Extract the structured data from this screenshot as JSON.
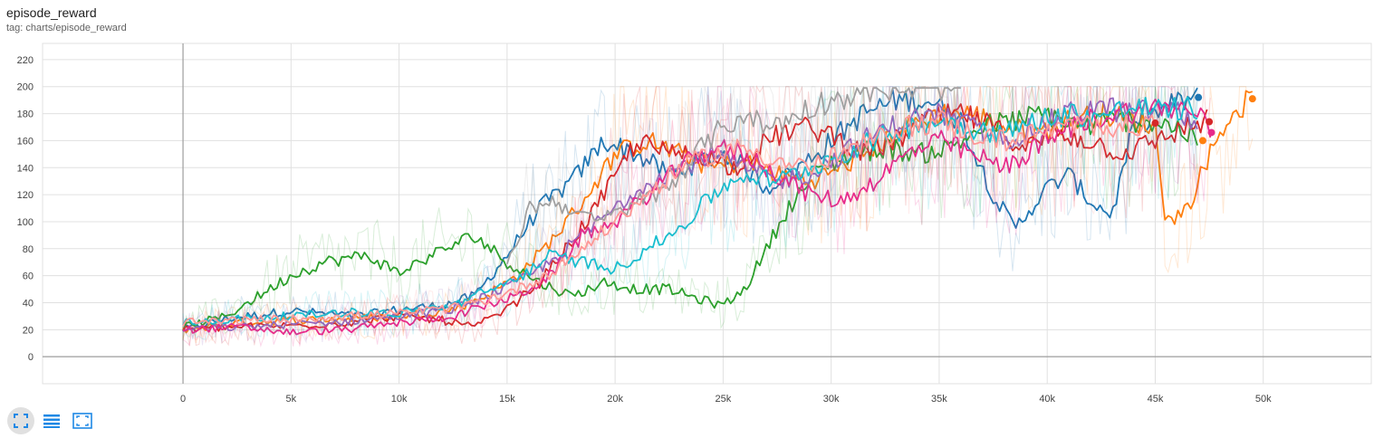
{
  "header": {
    "title": "episode_reward",
    "subtitle": "tag: charts/episode_reward"
  },
  "toolbar": {
    "buttons": [
      {
        "name": "fullscreen-toggle-button",
        "icon": "expand-corners-icon",
        "active": true
      },
      {
        "name": "toggle-y-log-button",
        "icon": "list-lines-icon",
        "active": false
      },
      {
        "name": "fit-domain-button",
        "icon": "fit-to-data-icon",
        "active": false
      }
    ],
    "icon_color": "#1e88e5"
  },
  "chart_data": {
    "type": "line",
    "xlim": [
      -6500,
      55000
    ],
    "ylim": [
      -20,
      232
    ],
    "x_ticks": [
      0,
      5000,
      10000,
      15000,
      20000,
      25000,
      30000,
      35000,
      40000,
      45000,
      50000
    ],
    "x_tick_labels": [
      "0",
      "5k",
      "10k",
      "15k",
      "20k",
      "25k",
      "30k",
      "35k",
      "40k",
      "45k",
      "50k"
    ],
    "y_ticks": [
      0,
      20,
      40,
      60,
      80,
      100,
      120,
      140,
      160,
      180,
      200,
      220
    ],
    "grid": true,
    "legend": "none",
    "series": [
      {
        "color": "#1f77b4",
        "x": [
          0,
          2000,
          5000,
          8000,
          10000,
          12000,
          13500,
          15000,
          16500,
          18000,
          19500,
          21000,
          22500,
          24000,
          25000,
          26000,
          27000,
          28500,
          30000,
          31500,
          33000,
          34500,
          36000,
          37500,
          38500,
          40000,
          41000,
          42000,
          43000,
          44000,
          45000,
          46000,
          47000
        ],
        "y": [
          20,
          28,
          34,
          30,
          35,
          38,
          45,
          75,
          110,
          130,
          160,
          150,
          135,
          145,
          150,
          140,
          125,
          140,
          160,
          180,
          190,
          190,
          175,
          120,
          95,
          125,
          135,
          115,
          105,
          170,
          180,
          188,
          192
        ]
      },
      {
        "color": "#ff7f0e",
        "x": [
          0,
          2500,
          5000,
          7500,
          10000,
          12500,
          14000,
          15500,
          17000,
          18500,
          20000,
          21500,
          23000,
          24500,
          26000,
          27500,
          29000,
          30500,
          32000,
          33500,
          35000,
          36500,
          38000,
          39500,
          41000,
          42500,
          44000,
          45000,
          45500,
          46500,
          47500,
          48500,
          49500
        ],
        "y": [
          20,
          25,
          27,
          28,
          30,
          35,
          45,
          60,
          85,
          115,
          150,
          160,
          150,
          140,
          145,
          135,
          130,
          140,
          155,
          170,
          180,
          180,
          170,
          165,
          175,
          180,
          175,
          170,
          100,
          110,
          150,
          180,
          191
        ]
      },
      {
        "color": "#2ca02c",
        "x": [
          0,
          2000,
          3500,
          5000,
          6500,
          8500,
          10000,
          11500,
          13500,
          15000,
          16500,
          18000,
          19500,
          21000,
          22500,
          24000,
          25000,
          26000,
          27000,
          28000,
          29500,
          31000,
          32500,
          34000,
          35500,
          37000,
          38500,
          40000,
          41500,
          43000,
          44500,
          46000,
          47000
        ],
        "y": [
          22,
          30,
          45,
          60,
          70,
          75,
          62,
          75,
          90,
          70,
          55,
          45,
          55,
          50,
          50,
          42,
          38,
          50,
          80,
          110,
          140,
          150,
          155,
          150,
          155,
          170,
          175,
          180,
          170,
          175,
          175,
          170,
          160
        ]
      },
      {
        "color": "#d62728",
        "x": [
          0,
          2500,
          5000,
          7500,
          10000,
          12000,
          13500,
          15000,
          16500,
          18000,
          19500,
          21000,
          22500,
          24000,
          25500,
          27000,
          28500,
          30000,
          31500,
          33000,
          34500,
          36000,
          37500,
          39000,
          40500,
          42000,
          43500,
          45000,
          46500,
          47500
        ],
        "y": [
          20,
          22,
          23,
          25,
          30,
          27,
          22,
          35,
          55,
          85,
          120,
          160,
          150,
          150,
          140,
          160,
          170,
          165,
          150,
          160,
          175,
          180,
          170,
          155,
          165,
          160,
          150,
          160,
          170,
          175
        ]
      },
      {
        "color": "#9467bd",
        "x": [
          0,
          2500,
          5000,
          7500,
          10000,
          12500,
          14000,
          15500,
          17000,
          18500,
          20000,
          21500,
          23000,
          24500,
          26000,
          27500,
          29000,
          30500,
          32000,
          33500,
          35000,
          36500,
          38000,
          39500,
          41000,
          42500,
          44000,
          45500,
          47000
        ],
        "y": [
          20,
          22,
          24,
          26,
          30,
          35,
          45,
          55,
          70,
          90,
          110,
          130,
          140,
          150,
          140,
          130,
          135,
          150,
          165,
          175,
          180,
          170,
          160,
          170,
          180,
          185,
          180,
          185,
          172
        ]
      },
      {
        "color": "#e7298a",
        "x": [
          0,
          2500,
          5000,
          7500,
          10000,
          12500,
          14000,
          15500,
          17000,
          18500,
          20000,
          21500,
          23000,
          24500,
          26000,
          27500,
          29000,
          30500,
          32000,
          33500,
          35000,
          36500,
          38000,
          39500,
          41000,
          42500,
          44000,
          45500,
          47000,
          47600
        ],
        "y": [
          20,
          22,
          18,
          20,
          25,
          30,
          38,
          45,
          60,
          90,
          100,
          120,
          140,
          155,
          150,
          135,
          120,
          115,
          130,
          150,
          160,
          150,
          140,
          155,
          170,
          178,
          182,
          185,
          180,
          166
        ]
      },
      {
        "color": "#17becf",
        "x": [
          0,
          2500,
          5000,
          7500,
          10000,
          12500,
          14000,
          15500,
          17000,
          18500,
          20000,
          21500,
          23000,
          24500,
          26000,
          27500,
          29000,
          30500,
          32000,
          33500,
          35000,
          36500,
          38000,
          39500,
          41000,
          42500,
          44000,
          45500,
          47000
        ],
        "y": [
          25,
          28,
          30,
          33,
          32,
          38,
          48,
          58,
          75,
          70,
          65,
          80,
          95,
          120,
          135,
          130,
          140,
          150,
          160,
          170,
          175,
          170,
          165,
          175,
          180,
          178,
          185,
          182,
          185
        ]
      },
      {
        "color": "#a0a0a0",
        "x": [
          15000,
          16000,
          17000,
          18000,
          19000,
          20000,
          21000,
          22000,
          23000,
          24000,
          25000,
          26000,
          27000,
          28000,
          29000,
          30000,
          31000,
          32000,
          33000,
          34000,
          35000,
          36000
        ],
        "y": [
          65,
          110,
          115,
          110,
          100,
          105,
          115,
          120,
          135,
          155,
          170,
          180,
          170,
          175,
          185,
          190,
          195,
          198,
          198,
          199,
          199,
          200
        ]
      },
      {
        "color": "#ff9896",
        "x": [
          0,
          2500,
          5000,
          7500,
          10000,
          12500,
          14000,
          15500,
          17000,
          18500,
          20000,
          21500,
          23000,
          24500,
          26000,
          27500,
          29000,
          30500,
          32000,
          33500,
          35000,
          36500,
          38000,
          39500,
          41000,
          42500,
          44000,
          45000
        ],
        "y": [
          25,
          27,
          28,
          30,
          32,
          36,
          42,
          50,
          62,
          80,
          100,
          120,
          140,
          150,
          155,
          145,
          140,
          150,
          160,
          170,
          175,
          165,
          160,
          165,
          170,
          172,
          170,
          173
        ]
      }
    ],
    "end_markers": [
      {
        "x": 47000,
        "y": 192,
        "color": "#1f77b4"
      },
      {
        "x": 49500,
        "y": 191,
        "color": "#ff7f0e"
      },
      {
        "x": 45000,
        "y": 173,
        "color": "#d62728"
      },
      {
        "x": 47500,
        "y": 174,
        "color": "#d62728"
      },
      {
        "x": 47600,
        "y": 166,
        "color": "#e7298a"
      },
      {
        "x": 47200,
        "y": 160,
        "color": "#ff7f0e"
      }
    ]
  }
}
